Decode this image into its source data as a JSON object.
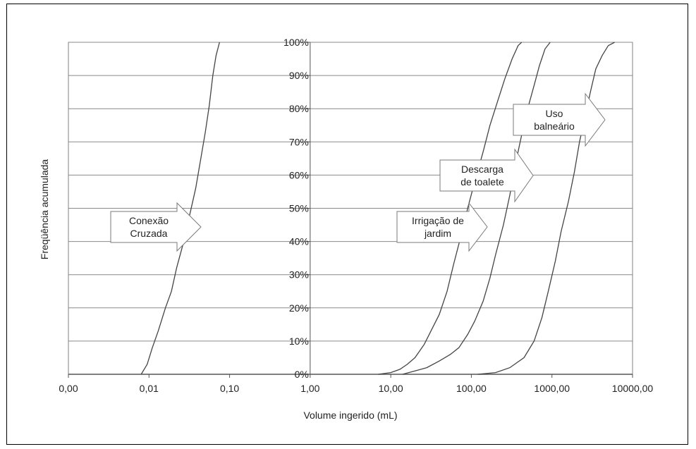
{
  "chart_data": {
    "type": "line",
    "xlabel": "Volume ingerido (mL)",
    "ylabel": "Freqüência acumulada",
    "x_scale": "log",
    "xlim": [
      0.001,
      10000
    ],
    "ylim": [
      0,
      100
    ],
    "x_ticks": [
      0.001,
      0.01,
      0.1,
      1,
      10,
      100,
      1000,
      10000
    ],
    "x_tick_labels": [
      "0,00",
      "0,01",
      "0,10",
      "1,00",
      "10,00",
      "100,00",
      "1000,00",
      "10000,00"
    ],
    "y_ticks": [
      0,
      10,
      20,
      30,
      40,
      50,
      60,
      70,
      80,
      90,
      100
    ],
    "y_tick_labels": [
      "0%",
      "10%",
      "20%",
      "30%",
      "40%",
      "50%",
      "60%",
      "70%",
      "80%",
      "90%",
      "100%"
    ],
    "grid": "horizontal",
    "series_color": "#444444",
    "series": [
      {
        "name": "Conexão Cruzada",
        "points": [
          [
            0.008,
            0
          ],
          [
            0.0095,
            3
          ],
          [
            0.011,
            8
          ],
          [
            0.013,
            13
          ],
          [
            0.016,
            20
          ],
          [
            0.019,
            25
          ],
          [
            0.022,
            32
          ],
          [
            0.027,
            40
          ],
          [
            0.032,
            48
          ],
          [
            0.038,
            56
          ],
          [
            0.044,
            65
          ],
          [
            0.05,
            73
          ],
          [
            0.056,
            81
          ],
          [
            0.062,
            90
          ],
          [
            0.068,
            96
          ],
          [
            0.075,
            100
          ]
        ]
      },
      {
        "name": "Irrigação de jardim",
        "points": [
          [
            7,
            0
          ],
          [
            10,
            0.5
          ],
          [
            13,
            1.5
          ],
          [
            16,
            3
          ],
          [
            20,
            5
          ],
          [
            26,
            9
          ],
          [
            33,
            14
          ],
          [
            40,
            18
          ],
          [
            50,
            25
          ],
          [
            60,
            33
          ],
          [
            75,
            42
          ],
          [
            90,
            50
          ],
          [
            110,
            58
          ],
          [
            140,
            67
          ],
          [
            170,
            75
          ],
          [
            210,
            82
          ],
          [
            260,
            89
          ],
          [
            320,
            95
          ],
          [
            380,
            99
          ],
          [
            420,
            100
          ]
        ]
      },
      {
        "name": "Descarga de toalete",
        "points": [
          [
            14,
            0
          ],
          [
            20,
            1
          ],
          [
            28,
            2
          ],
          [
            40,
            4
          ],
          [
            55,
            6
          ],
          [
            70,
            8
          ],
          [
            90,
            12
          ],
          [
            110,
            16
          ],
          [
            140,
            22
          ],
          [
            170,
            29
          ],
          [
            200,
            36
          ],
          [
            250,
            45
          ],
          [
            300,
            54
          ],
          [
            350,
            63
          ],
          [
            420,
            72
          ],
          [
            500,
            80
          ],
          [
            600,
            87
          ],
          [
            700,
            93
          ],
          [
            820,
            98
          ],
          [
            950,
            100
          ]
        ]
      },
      {
        "name": "Uso balneário",
        "points": [
          [
            120,
            0
          ],
          [
            200,
            0.5
          ],
          [
            300,
            2
          ],
          [
            450,
            5
          ],
          [
            600,
            10
          ],
          [
            750,
            17
          ],
          [
            900,
            25
          ],
          [
            1100,
            34
          ],
          [
            1300,
            43
          ],
          [
            1600,
            52
          ],
          [
            1900,
            61
          ],
          [
            2200,
            70
          ],
          [
            2600,
            78
          ],
          [
            3000,
            85
          ],
          [
            3500,
            92
          ],
          [
            4200,
            96
          ],
          [
            5000,
            99
          ],
          [
            6000,
            100
          ]
        ]
      }
    ],
    "annotations": [
      {
        "label_lines": [
          "Conexão",
          "Cruzada"
        ],
        "series": "Conexão Cruzada"
      },
      {
        "label_lines": [
          "Irrigação de",
          "jardim"
        ],
        "series": "Irrigação de jardim"
      },
      {
        "label_lines": [
          "Descarga",
          "de toalete"
        ],
        "series": "Descarga de toalete"
      },
      {
        "label_lines": [
          "Uso",
          "balneário"
        ],
        "series": "Uso balneário"
      }
    ]
  }
}
